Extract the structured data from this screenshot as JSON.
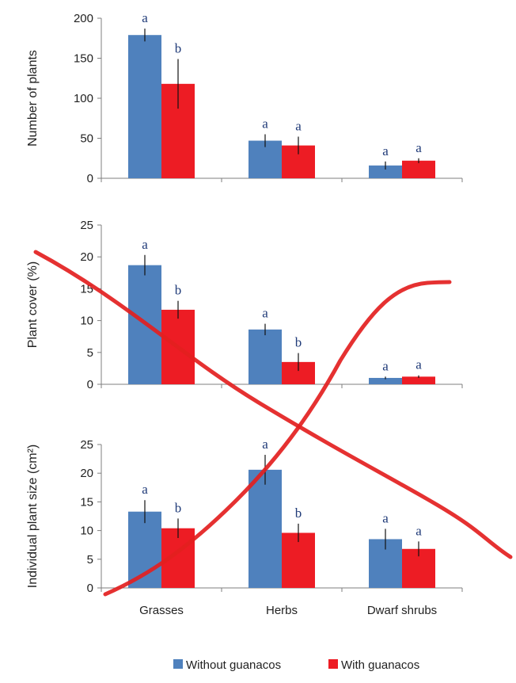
{
  "chart_data": [
    {
      "type": "bar",
      "title": "",
      "xlabel": "",
      "ylabel": "Number of plants",
      "ylim": [
        0,
        200
      ],
      "yticks": [
        0,
        50,
        100,
        150,
        200
      ],
      "categories": [
        "Grasses",
        "Herbs",
        "Dwarf shrubs"
      ],
      "show_category_labels": false,
      "series": [
        {
          "name": "Without guanacos",
          "values": [
            179,
            47,
            16
          ],
          "errors": [
            8,
            8,
            5
          ],
          "letters": [
            "a",
            "a",
            "a"
          ],
          "color": "#4f81bd"
        },
        {
          "name": "With guanacos",
          "values": [
            118,
            41,
            22
          ],
          "errors": [
            31,
            11,
            3
          ],
          "letters": [
            "b",
            "a",
            "a"
          ],
          "color": "#ed1c24"
        }
      ]
    },
    {
      "type": "bar",
      "title": "",
      "xlabel": "",
      "ylabel": "Plant cover (%)",
      "ylim": [
        0,
        25
      ],
      "yticks": [
        0,
        5,
        10,
        15,
        20,
        25
      ],
      "categories": [
        "Grasses",
        "Herbs",
        "Dwarf shrubs"
      ],
      "show_category_labels": false,
      "series": [
        {
          "name": "Without guanacos",
          "values": [
            18.7,
            8.6,
            1.0
          ],
          "errors": [
            1.6,
            0.9,
            0.2
          ],
          "letters": [
            "a",
            "a",
            "a"
          ],
          "color": "#4f81bd"
        },
        {
          "name": "With guanacos",
          "values": [
            11.7,
            3.5,
            1.2
          ],
          "errors": [
            1.4,
            1.4,
            0.2
          ],
          "letters": [
            "b",
            "b",
            "a"
          ],
          "color": "#ed1c24"
        }
      ]
    },
    {
      "type": "bar",
      "title": "",
      "xlabel": "",
      "ylabel": "Individual plant size (cm²)",
      "ylim": [
        0,
        25
      ],
      "yticks": [
        0,
        5,
        10,
        15,
        20,
        25
      ],
      "categories": [
        "Grasses",
        "Herbs",
        "Dwarf shrubs"
      ],
      "show_category_labels": true,
      "series": [
        {
          "name": "Without guanacos",
          "values": [
            13.3,
            20.6,
            8.5
          ],
          "errors": [
            2.0,
            2.6,
            1.8
          ],
          "letters": [
            "a",
            "a",
            "a"
          ],
          "color": "#4f81bd"
        },
        {
          "name": "With guanacos",
          "values": [
            10.4,
            9.6,
            6.8
          ],
          "errors": [
            1.7,
            1.6,
            1.3
          ],
          "letters": [
            "b",
            "b",
            "a"
          ],
          "color": "#ed1c24"
        }
      ]
    }
  ],
  "legend": {
    "position": "bottom-center",
    "items": [
      {
        "label": "Without guanacos",
        "color": "#4f81bd"
      },
      {
        "label": "With guanacos",
        "color": "#ed1c24"
      }
    ]
  },
  "overlay": {
    "color": "#e32020",
    "description_strokes": 2
  }
}
